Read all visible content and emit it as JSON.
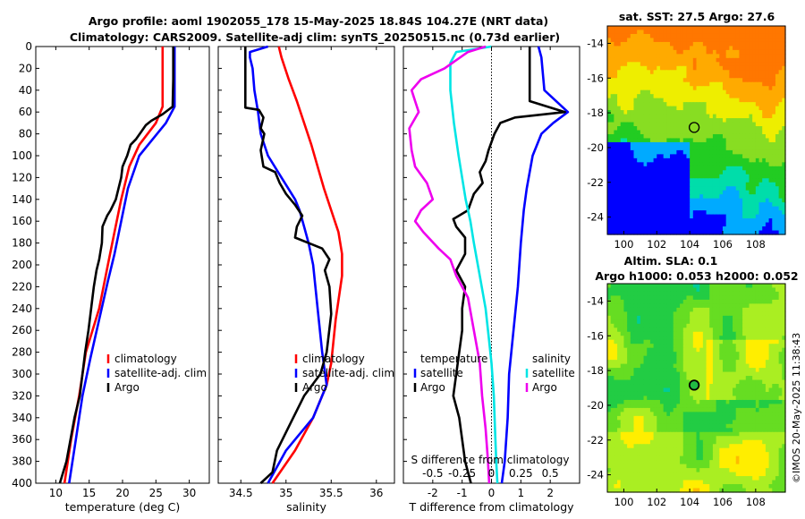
{
  "titles": {
    "line1": "Argo profile: aoml 1902055_178 15-May-2025 18.84S 104.27E (NRT data)",
    "line2": "Climatology: CARS2009. Satellite-adj clim: synTS_20250515.nc (0.73d earlier)"
  },
  "side_label": "©IMOS 20-May-2025 11:38:43",
  "colors": {
    "climatology": "#ff0000",
    "satellite": "#0000ff",
    "argo": "#000000",
    "temp_diff_sat": "#0000ff",
    "sal_diff_sat": "#00e5e5",
    "sal_diff_argo": "#ee00ee"
  },
  "chart_data": [
    {
      "type": "line",
      "id": "temperature",
      "xlabel": "temperature (deg C)",
      "xlim": [
        7,
        33
      ],
      "xticks": [
        10,
        15,
        20,
        25,
        30
      ],
      "ylim": [
        0,
        400
      ],
      "yticks": [
        0,
        20,
        40,
        60,
        80,
        100,
        120,
        140,
        160,
        180,
        200,
        220,
        240,
        260,
        280,
        300,
        320,
        340,
        360,
        380,
        400
      ],
      "legend": [
        "climatology",
        "satellite-adj. clim",
        "Argo"
      ],
      "series": [
        {
          "name": "climatology",
          "points": [
            [
              26.0,
              0
            ],
            [
              26.0,
              25
            ],
            [
              26.0,
              55
            ],
            [
              25.0,
              70
            ],
            [
              22.5,
              90
            ],
            [
              21.0,
              110
            ],
            [
              19.8,
              140
            ],
            [
              18.8,
              170
            ],
            [
              17.8,
              200
            ],
            [
              16.5,
              240
            ],
            [
              14.5,
              280
            ],
            [
              13.5,
              320
            ],
            [
              12.3,
              360
            ],
            [
              11.3,
              400
            ]
          ]
        },
        {
          "name": "satellite-adj. clim",
          "points": [
            [
              27.8,
              0
            ],
            [
              27.8,
              25
            ],
            [
              27.8,
              55
            ],
            [
              26.5,
              70
            ],
            [
              24.5,
              85
            ],
            [
              22.5,
              100
            ],
            [
              20.8,
              130
            ],
            [
              19.8,
              160
            ],
            [
              18.8,
              190
            ],
            [
              17.8,
              215
            ],
            [
              16.5,
              250
            ],
            [
              15.2,
              285
            ],
            [
              14.0,
              320
            ],
            [
              13.0,
              360
            ],
            [
              12.0,
              400
            ]
          ]
        },
        {
          "name": "Argo",
          "points": [
            [
              27.6,
              0
            ],
            [
              27.6,
              30
            ],
            [
              27.5,
              55
            ],
            [
              26.0,
              62
            ],
            [
              24.3,
              68
            ],
            [
              23.5,
              72
            ],
            [
              22.8,
              78
            ],
            [
              22.0,
              85
            ],
            [
              21.2,
              90
            ],
            [
              20.7,
              100
            ],
            [
              20.0,
              110
            ],
            [
              19.8,
              120
            ],
            [
              19.4,
              130
            ],
            [
              19.0,
              140
            ],
            [
              18.2,
              150
            ],
            [
              17.7,
              155
            ],
            [
              17.0,
              165
            ],
            [
              16.9,
              180
            ],
            [
              16.5,
              195
            ],
            [
              16.1,
              205
            ],
            [
              15.7,
              220
            ],
            [
              15.3,
              240
            ],
            [
              14.9,
              260
            ],
            [
              14.4,
              280
            ],
            [
              14.0,
              300
            ],
            [
              13.6,
              320
            ],
            [
              12.8,
              340
            ],
            [
              12.2,
              360
            ],
            [
              11.6,
              380
            ],
            [
              10.6,
              400
            ]
          ]
        }
      ]
    },
    {
      "type": "line",
      "id": "salinity",
      "xlabel": "salinity",
      "xlim": [
        34.25,
        36.2
      ],
      "xticks": [
        34.5,
        35,
        35.5,
        36
      ],
      "ylim": [
        0,
        400
      ],
      "legend": [
        "climatology",
        "satellite-adj. clim",
        "Argo"
      ],
      "series": [
        {
          "name": "climatology",
          "points": [
            [
              34.92,
              0
            ],
            [
              34.95,
              10
            ],
            [
              35.03,
              30
            ],
            [
              35.12,
              50
            ],
            [
              35.2,
              70
            ],
            [
              35.28,
              90
            ],
            [
              35.35,
              110
            ],
            [
              35.42,
              130
            ],
            [
              35.5,
              150
            ],
            [
              35.58,
              170
            ],
            [
              35.62,
              190
            ],
            [
              35.62,
              210
            ],
            [
              35.55,
              250
            ],
            [
              35.5,
              290
            ],
            [
              35.45,
              310
            ],
            [
              35.3,
              340
            ],
            [
              35.1,
              370
            ],
            [
              34.85,
              400
            ]
          ]
        },
        {
          "name": "satellite-adj. clim",
          "points": [
            [
              34.8,
              0
            ],
            [
              34.6,
              5
            ],
            [
              34.6,
              10
            ],
            [
              34.63,
              20
            ],
            [
              34.65,
              40
            ],
            [
              34.69,
              60
            ],
            [
              34.72,
              80
            ],
            [
              34.8,
              100
            ],
            [
              34.95,
              120
            ],
            [
              35.1,
              140
            ],
            [
              35.15,
              150
            ],
            [
              35.2,
              165
            ],
            [
              35.25,
              180
            ],
            [
              35.3,
              200
            ],
            [
              35.35,
              240
            ],
            [
              35.4,
              280
            ],
            [
              35.45,
              310
            ],
            [
              35.3,
              340
            ],
            [
              35.0,
              370
            ],
            [
              34.8,
              400
            ]
          ]
        },
        {
          "name": "Argo",
          "points": [
            [
              34.55,
              0
            ],
            [
              34.55,
              15
            ],
            [
              34.55,
              40
            ],
            [
              34.55,
              56
            ],
            [
              34.7,
              58
            ],
            [
              34.75,
              65
            ],
            [
              34.72,
              75
            ],
            [
              34.76,
              80
            ],
            [
              34.72,
              95
            ],
            [
              34.75,
              110
            ],
            [
              34.88,
              115
            ],
            [
              34.93,
              125
            ],
            [
              35.0,
              135
            ],
            [
              35.1,
              145
            ],
            [
              35.18,
              155
            ],
            [
              35.12,
              165
            ],
            [
              35.1,
              175
            ],
            [
              35.25,
              180
            ],
            [
              35.4,
              185
            ],
            [
              35.48,
              195
            ],
            [
              35.43,
              205
            ],
            [
              35.48,
              220
            ],
            [
              35.5,
              245
            ],
            [
              35.45,
              280
            ],
            [
              35.38,
              300
            ],
            [
              35.2,
              320
            ],
            [
              35.05,
              345
            ],
            [
              34.9,
              370
            ],
            [
              34.85,
              390
            ],
            [
              34.72,
              400
            ]
          ]
        }
      ]
    },
    {
      "type": "line",
      "id": "difference",
      "xlabel": "T difference from climatology",
      "xlabel_top": "S difference from climatology",
      "xlim": [
        -3.0,
        3.0
      ],
      "xticks": [
        -2,
        -1,
        0,
        1,
        2
      ],
      "xticks_top": [
        -0.5,
        -0.25,
        0,
        0.25,
        0.5
      ],
      "xlim_top": [
        -0.75,
        0.75
      ],
      "ylim": [
        0,
        400
      ],
      "legend_temperature": [
        "temperature",
        "satellite",
        "Argo"
      ],
      "legend_salinity": [
        "salinity",
        "satellite",
        "Argo"
      ],
      "series": [
        {
          "name": "temperature satellite",
          "points": [
            [
              1.6,
              0
            ],
            [
              1.7,
              10
            ],
            [
              1.8,
              40
            ],
            [
              2.0,
              45
            ],
            [
              2.6,
              60
            ],
            [
              2.1,
              70
            ],
            [
              1.7,
              80
            ],
            [
              1.4,
              100
            ],
            [
              1.2,
              130
            ],
            [
              1.1,
              150
            ],
            [
              1.0,
              180
            ],
            [
              0.9,
              220
            ],
            [
              0.75,
              260
            ],
            [
              0.6,
              300
            ],
            [
              0.55,
              340
            ],
            [
              0.45,
              380
            ],
            [
              0.35,
              400
            ]
          ]
        },
        {
          "name": "temperature Argo",
          "points": [
            [
              1.3,
              0
            ],
            [
              1.3,
              50
            ],
            [
              2.5,
              60
            ],
            [
              0.8,
              65
            ],
            [
              0.3,
              70
            ],
            [
              0.1,
              80
            ],
            [
              -0.1,
              95
            ],
            [
              -0.2,
              105
            ],
            [
              -0.4,
              115
            ],
            [
              -0.3,
              125
            ],
            [
              -0.6,
              135
            ],
            [
              -0.8,
              150
            ],
            [
              -1.3,
              158
            ],
            [
              -1.2,
              165
            ],
            [
              -0.9,
              175
            ],
            [
              -0.9,
              190
            ],
            [
              -1.2,
              205
            ],
            [
              -0.9,
              220
            ],
            [
              -1.0,
              240
            ],
            [
              -1.0,
              260
            ],
            [
              -1.1,
              280
            ],
            [
              -1.2,
              300
            ],
            [
              -1.3,
              320
            ],
            [
              -1.1,
              340
            ],
            [
              -1.0,
              360
            ],
            [
              -0.9,
              380
            ],
            [
              -0.7,
              400
            ]
          ]
        },
        {
          "name": "salinity satellite",
          "points": [
            [
              0.0,
              0
            ],
            [
              -0.3,
              5
            ],
            [
              -0.35,
              15
            ],
            [
              -0.35,
              40
            ],
            [
              -0.32,
              70
            ],
            [
              -0.28,
              100
            ],
            [
              -0.22,
              140
            ],
            [
              -0.18,
              160
            ],
            [
              -0.15,
              180
            ],
            [
              -0.1,
              210
            ],
            [
              -0.05,
              240
            ],
            [
              -0.02,
              270
            ],
            [
              0.0,
              290
            ],
            [
              0.02,
              320
            ],
            [
              0.03,
              350
            ],
            [
              0.04,
              380
            ],
            [
              0.05,
              400
            ]
          ]
        },
        {
          "name": "salinity Argo",
          "points": [
            [
              -0.05,
              0
            ],
            [
              -0.2,
              5
            ],
            [
              -0.4,
              20
            ],
            [
              -0.6,
              30
            ],
            [
              -0.68,
              40
            ],
            [
              -0.65,
              50
            ],
            [
              -0.62,
              60
            ],
            [
              -0.7,
              75
            ],
            [
              -0.68,
              95
            ],
            [
              -0.65,
              110
            ],
            [
              -0.55,
              125
            ],
            [
              -0.5,
              140
            ],
            [
              -0.6,
              150
            ],
            [
              -0.65,
              160
            ],
            [
              -0.58,
              170
            ],
            [
              -0.45,
              185
            ],
            [
              -0.35,
              195
            ],
            [
              -0.3,
              210
            ],
            [
              -0.2,
              230
            ],
            [
              -0.15,
              260
            ],
            [
              -0.1,
              290
            ],
            [
              -0.08,
              320
            ],
            [
              -0.05,
              350
            ],
            [
              -0.03,
              380
            ],
            [
              -0.02,
              400
            ]
          ]
        }
      ]
    },
    {
      "type": "heatmap",
      "id": "sst_map",
      "title": "sat. SST: 27.5 Argo: 27.6",
      "xlim": [
        99,
        109.8
      ],
      "ylim": [
        -25,
        -13
      ],
      "xticks": [
        100,
        102,
        104,
        106,
        108
      ],
      "yticks": [
        -14,
        -16,
        -18,
        -20,
        -22,
        -24
      ],
      "marker": {
        "lon": 104.27,
        "lat": -18.84
      },
      "colors": [
        "#0000ff",
        "#00aaff",
        "#00ddaa",
        "#22cc22",
        "#88dd22",
        "#eeee00",
        "#ffaa00",
        "#ff7700"
      ]
    },
    {
      "type": "heatmap",
      "id": "sla_map",
      "title": "Altim. SLA: 0.1",
      "subtitle": "Argo h1000: 0.053 h2000: 0.052",
      "xlim": [
        99,
        109.8
      ],
      "ylim": [
        -25,
        -13
      ],
      "xticks": [
        100,
        102,
        104,
        106,
        108
      ],
      "yticks": [
        -14,
        -16,
        -18,
        -20,
        -22,
        -24
      ],
      "marker": {
        "lon": 104.27,
        "lat": -18.84
      },
      "colors": [
        "#00cc99",
        "#22cc44",
        "#66dd22",
        "#aaee22",
        "#ffee00",
        "#ffbb00"
      ]
    }
  ]
}
